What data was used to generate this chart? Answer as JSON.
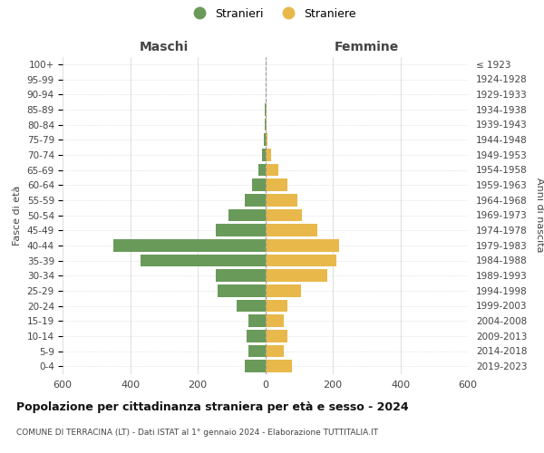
{
  "age_groups": [
    "0-4",
    "5-9",
    "10-14",
    "15-19",
    "20-24",
    "25-29",
    "30-34",
    "35-39",
    "40-44",
    "45-49",
    "50-54",
    "55-59",
    "60-64",
    "65-69",
    "70-74",
    "75-79",
    "80-84",
    "85-89",
    "90-94",
    "95-99",
    "100+"
  ],
  "birth_years": [
    "2019-2023",
    "2014-2018",
    "2009-2013",
    "2004-2008",
    "1999-2003",
    "1994-1998",
    "1989-1993",
    "1984-1988",
    "1979-1983",
    "1974-1978",
    "1969-1973",
    "1964-1968",
    "1959-1963",
    "1954-1958",
    "1949-1953",
    "1944-1948",
    "1939-1943",
    "1934-1938",
    "1929-1933",
    "1924-1928",
    "≤ 1923"
  ],
  "maschi": [
    60,
    50,
    55,
    50,
    85,
    140,
    145,
    370,
    450,
    145,
    110,
    60,
    40,
    20,
    10,
    5,
    2,
    1,
    0,
    0,
    0
  ],
  "femmine": [
    80,
    55,
    65,
    55,
    65,
    105,
    185,
    210,
    220,
    155,
    110,
    95,
    65,
    38,
    18,
    8,
    5,
    3,
    2,
    1,
    1
  ],
  "stranieri_color": "#6a9a5a",
  "straniere_color": "#e8b84b",
  "title": "Popolazione per cittadinanza straniera per età e sesso - 2024",
  "subtitle": "COMUNE DI TERRACINA (LT) - Dati ISTAT al 1° gennaio 2024 - Elaborazione TUTTITALIA.IT",
  "label_maschi": "Maschi",
  "label_femmine": "Femmine",
  "ylabel_left": "Fasce di età",
  "ylabel_right": "Anni di nascita",
  "legend_stranieri": "Stranieri",
  "legend_straniere": "Straniere",
  "xlim": 600,
  "xticks": [
    -600,
    -400,
    -200,
    0,
    200,
    400,
    600
  ],
  "bg_color": "#ffffff",
  "grid_color": "#d0d0d0"
}
